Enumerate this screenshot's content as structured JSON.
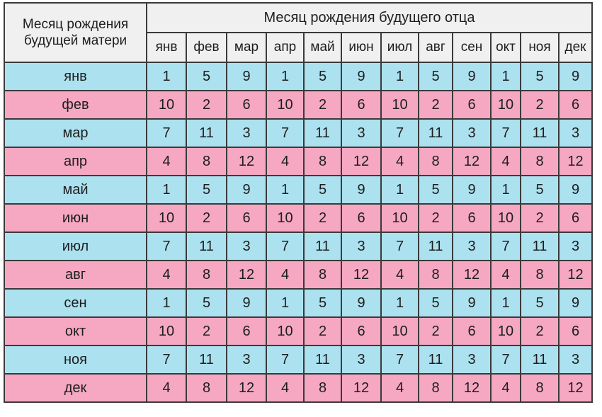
{
  "table": {
    "corner_label": "Месяц рождения будущей матери",
    "father_header": "Месяц рождения будущего отца",
    "father_months": [
      "янв",
      "фев",
      "мар",
      "апр",
      "май",
      "июн",
      "июл",
      "авг",
      "сен",
      "окт",
      "ноя",
      "дек"
    ],
    "row_colors": {
      "blue": "#ace1ef",
      "pink": "#f6a8c3"
    },
    "rows": [
      {
        "mother_month": "янв",
        "color": "blue",
        "values": [
          "1",
          "5",
          "9",
          "1",
          "5",
          "9",
          "1",
          "5",
          "9",
          "1",
          "5",
          "9"
        ]
      },
      {
        "mother_month": "фев",
        "color": "pink",
        "values": [
          "10",
          "2",
          "6",
          "10",
          "2",
          "6",
          "10",
          "2",
          "6",
          "10",
          "2",
          "6"
        ]
      },
      {
        "mother_month": "мар",
        "color": "blue",
        "values": [
          "7",
          "11",
          "3",
          "7",
          "11",
          "3",
          "7",
          "11",
          "3",
          "7",
          "11",
          "3"
        ]
      },
      {
        "mother_month": "апр",
        "color": "pink",
        "values": [
          "4",
          "8",
          "12",
          "4",
          "8",
          "12",
          "4",
          "8",
          "12",
          "4",
          "8",
          "12"
        ]
      },
      {
        "mother_month": "май",
        "color": "blue",
        "values": [
          "1",
          "5",
          "9",
          "1",
          "5",
          "9",
          "1",
          "5",
          "9",
          "1",
          "5",
          "9"
        ]
      },
      {
        "mother_month": "июн",
        "color": "pink",
        "values": [
          "10",
          "2",
          "6",
          "10",
          "2",
          "6",
          "10",
          "2",
          "6",
          "10",
          "2",
          "6"
        ]
      },
      {
        "mother_month": "июл",
        "color": "blue",
        "values": [
          "7",
          "11",
          "3",
          "7",
          "11",
          "3",
          "7",
          "11",
          "3",
          "7",
          "11",
          "3"
        ]
      },
      {
        "mother_month": "авг",
        "color": "pink",
        "values": [
          "4",
          "8",
          "12",
          "4",
          "8",
          "12",
          "4",
          "8",
          "12",
          "4",
          "8",
          "12"
        ]
      },
      {
        "mother_month": "сен",
        "color": "blue",
        "values": [
          "1",
          "5",
          "9",
          "1",
          "5",
          "9",
          "1",
          "5",
          "9",
          "1",
          "5",
          "9"
        ]
      },
      {
        "mother_month": "окт",
        "color": "pink",
        "values": [
          "10",
          "2",
          "6",
          "10",
          "2",
          "6",
          "10",
          "2",
          "6",
          "10",
          "2",
          "6"
        ]
      },
      {
        "mother_month": "ноя",
        "color": "blue",
        "values": [
          "7",
          "11",
          "3",
          "7",
          "11",
          "3",
          "7",
          "11",
          "3",
          "7",
          "11",
          "3"
        ]
      },
      {
        "mother_month": "дек",
        "color": "pink",
        "values": [
          "4",
          "8",
          "12",
          "4",
          "8",
          "12",
          "4",
          "8",
          "12",
          "4",
          "8",
          "12"
        ]
      }
    ]
  }
}
